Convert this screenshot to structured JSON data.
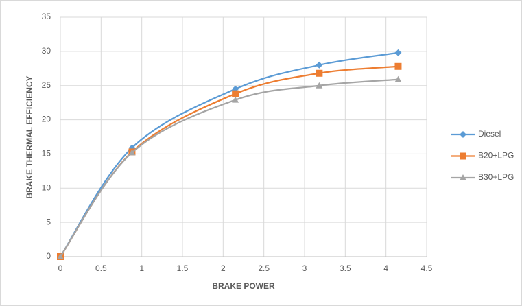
{
  "chart_data": {
    "type": "line",
    "smooth": true,
    "grid": true,
    "legend": "right",
    "xlabel": "BRAKE POWER",
    "ylabel": "BRAKE THERMAL EFFICIENCY",
    "x": [
      0,
      0.88,
      2.15,
      3.18,
      4.15
    ],
    "series": [
      {
        "name": "Diesel",
        "color": "#5b9bd5",
        "marker": "diamond",
        "values": [
          0,
          15.9,
          24.5,
          28,
          29.8
        ]
      },
      {
        "name": "B20+LPG",
        "color": "#ed7d31",
        "marker": "square",
        "values": [
          0,
          15.3,
          23.8,
          26.8,
          27.8
        ]
      },
      {
        "name": "B30+LPG",
        "color": "#a5a5a5",
        "marker": "triangle",
        "values": [
          0,
          15.2,
          22.9,
          25,
          25.9
        ]
      }
    ],
    "xlim": [
      0,
      4.5
    ],
    "xticks": [
      0,
      0.5,
      1,
      1.5,
      2,
      2.5,
      3,
      3.5,
      4,
      4.5
    ],
    "ylim": [
      0,
      35
    ],
    "yticks": [
      0,
      5,
      10,
      15,
      20,
      25,
      30,
      35
    ]
  }
}
